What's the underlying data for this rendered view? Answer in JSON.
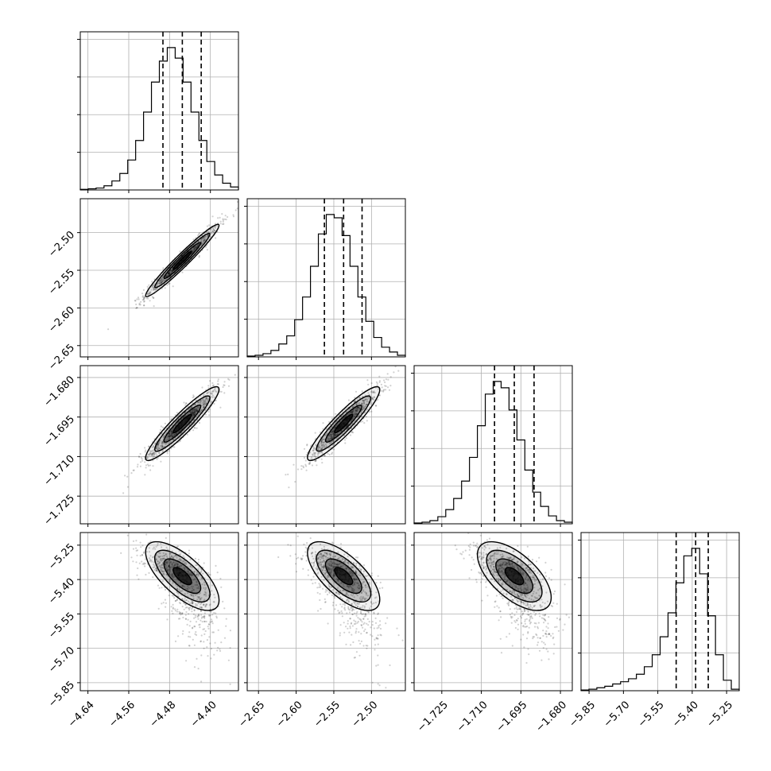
{
  "chart_data": {
    "type": "corner",
    "parameters": [
      {
        "id": "p0",
        "label": "",
        "range": [
          -4.655,
          -4.345
        ],
        "ticks": [
          "−4.64",
          "−4.56",
          "−4.48",
          "−4.40"
        ],
        "tick_values": [
          -4.64,
          -4.56,
          -4.48,
          -4.4
        ],
        "mean": -4.455,
        "sigma": 0.036,
        "skew": 0,
        "hist": [
          0.004,
          0.008,
          0.013,
          0.028,
          0.06,
          0.11,
          0.2,
          0.33,
          0.52,
          0.72,
          0.86,
          0.95,
          0.88,
          0.72,
          0.52,
          0.33,
          0.19,
          0.1,
          0.045,
          0.02
        ],
        "quantiles": [
          -4.493,
          -4.455,
          -4.418
        ]
      },
      {
        "id": "p1",
        "label": "",
        "range": [
          -2.665,
          -2.455
        ],
        "ticks": [
          "−2.65",
          "−2.60",
          "−2.55",
          "−2.50"
        ],
        "tick_values": [
          -2.65,
          -2.6,
          -2.55,
          -2.5
        ],
        "mean": -2.537,
        "sigma": 0.024,
        "skew": 0,
        "hist": [
          0.005,
          0.01,
          0.02,
          0.04,
          0.08,
          0.13,
          0.23,
          0.37,
          0.56,
          0.76,
          0.88,
          0.86,
          0.75,
          0.56,
          0.37,
          0.22,
          0.12,
          0.06,
          0.03,
          0.01
        ],
        "quantiles": [
          -2.5625,
          -2.537,
          -2.5125
        ]
      },
      {
        "id": "p2",
        "label": "",
        "range": [
          -1.7355,
          -1.6755
        ],
        "ticks": [
          "−1.725",
          "−1.710",
          "−1.695",
          "−1.680"
        ],
        "tick_values": [
          -1.725,
          -1.71,
          -1.695,
          -1.68
        ],
        "mean": -1.6975,
        "sigma": 0.007,
        "skew": 0,
        "hist": [
          0.005,
          0.01,
          0.02,
          0.045,
          0.09,
          0.16,
          0.27,
          0.42,
          0.62,
          0.82,
          0.9,
          0.86,
          0.72,
          0.53,
          0.34,
          0.2,
          0.11,
          0.05,
          0.02,
          0.01
        ],
        "quantiles": [
          -1.705,
          -1.6975,
          -1.69
        ]
      },
      {
        "id": "p3",
        "label": "",
        "range": [
          -5.885,
          -5.195
        ],
        "ticks": [
          "−5.85",
          "−5.70",
          "−5.55",
          "−5.40",
          "−5.25"
        ],
        "tick_values": [
          -5.85,
          -5.7,
          -5.55,
          -5.4,
          -5.25
        ],
        "mean": -5.385,
        "sigma": 0.075,
        "skew": 1,
        "hist": [
          0.005,
          0.01,
          0.02,
          0.03,
          0.045,
          0.06,
          0.08,
          0.11,
          0.16,
          0.24,
          0.36,
          0.52,
          0.72,
          0.9,
          0.95,
          0.78,
          0.5,
          0.24,
          0.07,
          0.01
        ],
        "quantiles": [
          -5.47,
          -5.385,
          -5.33
        ]
      }
    ],
    "correlations": {
      "1,0": 0.97,
      "2,0": 0.93,
      "2,1": 0.92,
      "3,0": -0.7,
      "3,1": -0.68,
      "3,2": -0.62
    },
    "grid": true,
    "histogram_bins": 20,
    "quantile_style": "dashed"
  }
}
